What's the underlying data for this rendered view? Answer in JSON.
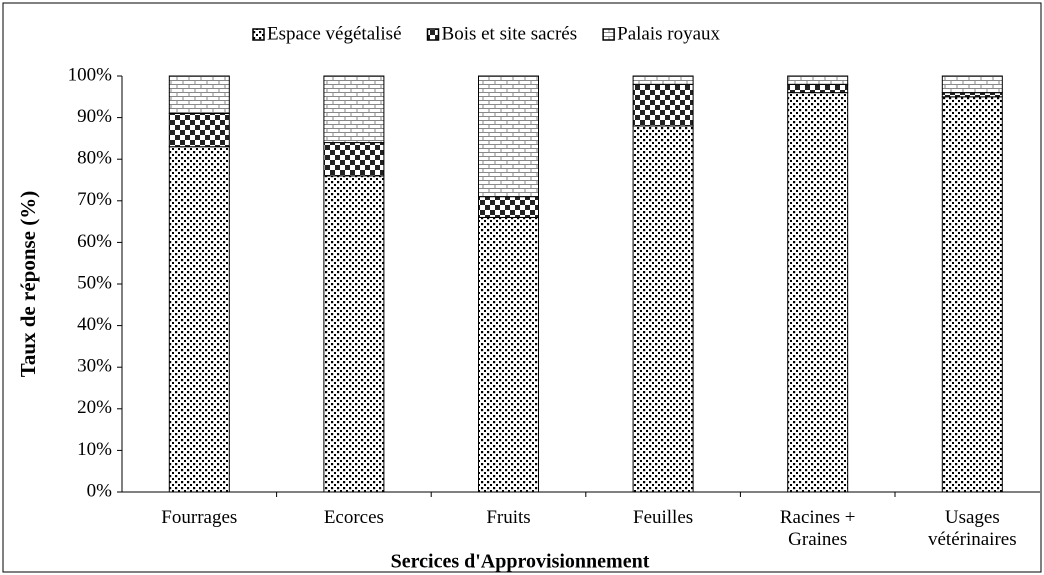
{
  "chart_data": {
    "type": "stacked_bar",
    "x_label": "Sercices d'Approvisionnement",
    "y_label": "Taux de réponse (%)",
    "categories": [
      "Fourrages",
      "Ecorces",
      "Fruits",
      "Feuilles",
      "Racines + Graines",
      "Usages vétérinaires"
    ],
    "series": [
      {
        "name": "Espace végétalisé",
        "color": "#000000",
        "values": [
          83,
          76,
          66,
          88,
          96,
          95
        ]
      },
      {
        "name": "Bois et site sacrés",
        "color": "#222222",
        "values": [
          8,
          8,
          5,
          10,
          2,
          1
        ]
      },
      {
        "name": "Palais royaux",
        "color": "#888888",
        "values": [
          9,
          16,
          29,
          2,
          2,
          4
        ]
      }
    ],
    "ylim": [
      0,
      100
    ],
    "yticks": [
      {
        "value": 0,
        "label": "0%"
      },
      {
        "value": 10,
        "label": "10%"
      },
      {
        "value": 20,
        "label": "20%"
      },
      {
        "value": 30,
        "label": "30%"
      },
      {
        "value": 40,
        "label": "40%"
      },
      {
        "value": 50,
        "label": "50%"
      },
      {
        "value": 60,
        "label": "60%"
      },
      {
        "value": 70,
        "label": "70%"
      },
      {
        "value": 80,
        "label": "80%"
      },
      {
        "value": 90,
        "label": "90%"
      },
      {
        "value": 100,
        "label": "100%"
      }
    ],
    "legend": "top"
  }
}
